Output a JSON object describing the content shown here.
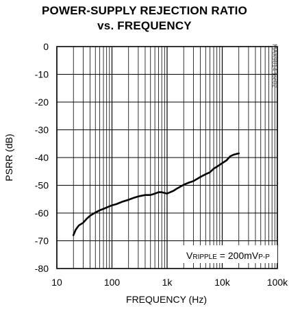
{
  "chart_data": {
    "type": "line",
    "title_line1": "POWER-SUPPLY REJECTION RATIO",
    "title_line2": "vs. FREQUENCY",
    "xlabel": "FREQUENCY (Hz)",
    "ylabel": "PSRR (dB)",
    "x_scale": "log",
    "xlim": [
      10,
      100000
    ],
    "ylim": [
      -80,
      0
    ],
    "x_ticks": [
      10,
      100,
      1000,
      10000,
      100000
    ],
    "x_tick_labels": [
      "10",
      "100",
      "1k",
      "10k",
      "100k"
    ],
    "y_ticks": [
      0,
      -10,
      -20,
      -30,
      -40,
      -50,
      -60,
      -70,
      -80
    ],
    "y_tick_labels": [
      "0",
      "-10",
      "-20",
      "-30",
      "-40",
      "-50",
      "-60",
      "-70",
      "-80"
    ],
    "grid": true,
    "watermark": "MAX9814 toc02",
    "annotation": {
      "prefix": "V",
      "sub": "RIPPLE",
      "mid": " = 200mV",
      "sub2": "P-P"
    },
    "series": [
      {
        "x": [
          20,
          22,
          25,
          30,
          35,
          40,
          50,
          60,
          70,
          80,
          100,
          120,
          150,
          200,
          250,
          300,
          400,
          500,
          600,
          700,
          800,
          1000,
          1300,
          1500,
          2000,
          2500,
          3000,
          4000,
          5000,
          6000,
          7000,
          8000,
          10000,
          12000,
          14000,
          16000,
          20000
        ],
        "y": [
          -68,
          -66,
          -64.5,
          -63.5,
          -62,
          -61,
          -59.8,
          -59,
          -58.5,
          -58,
          -57.2,
          -56.8,
          -56,
          -55.2,
          -54.5,
          -54,
          -53.5,
          -53.5,
          -53,
          -52.5,
          -52.5,
          -53,
          -52,
          -51.2,
          -49.8,
          -49,
          -48.5,
          -47,
          -46,
          -45.3,
          -44,
          -43.3,
          -42,
          -41,
          -39.5,
          -39,
          -38.5
        ]
      }
    ],
    "line_color": "#000000"
  }
}
